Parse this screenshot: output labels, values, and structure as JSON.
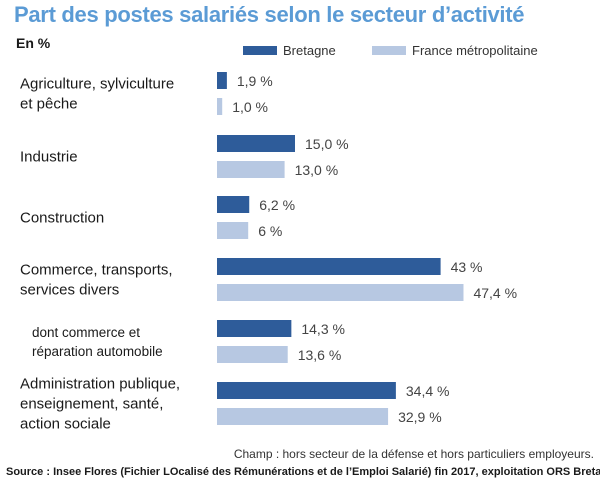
{
  "chart_data": {
    "type": "bar",
    "orientation": "horizontal",
    "title": "Part des postes salariés selon le secteur d’activité",
    "subtitle": "En %",
    "categories": [
      [
        "Agriculture, sylviculture",
        "et pêche"
      ],
      [
        "Industrie"
      ],
      [
        "Construction"
      ],
      [
        "Commerce, transports,",
        "services divers"
      ],
      [
        "dont commerce et",
        "réparation automobile"
      ],
      [
        "Administration publique,",
        "enseignement, santé,",
        "action sociale"
      ]
    ],
    "series": [
      {
        "name": "Bretagne",
        "color": "#2e5c9a",
        "values": [
          1.9,
          15.0,
          6.2,
          43,
          14.3,
          34.4
        ],
        "labels": [
          "1,9 %",
          "15,0 %",
          "6,2 %",
          "43 %",
          "14,3 %",
          "34,4 %"
        ]
      },
      {
        "name": "France métropolitaine",
        "color": "#b7c8e2",
        "values": [
          1.0,
          13.0,
          6,
          47.4,
          13.6,
          32.9
        ],
        "labels": [
          "1,0 %",
          "13,0 %",
          "6 %",
          "47,4 %",
          "13,6 %",
          "32,9 %"
        ]
      }
    ],
    "grid": false,
    "legend_position": "top-right",
    "annotations": [
      "Champ : hors secteur de la défense et hors particuliers employeurs."
    ]
  },
  "source": "Source : Insee Flores (Fichier LOcalisé des Rémunérations et de l’Emploi Salarié) fin 2017, exploitation ORS Bretagne."
}
